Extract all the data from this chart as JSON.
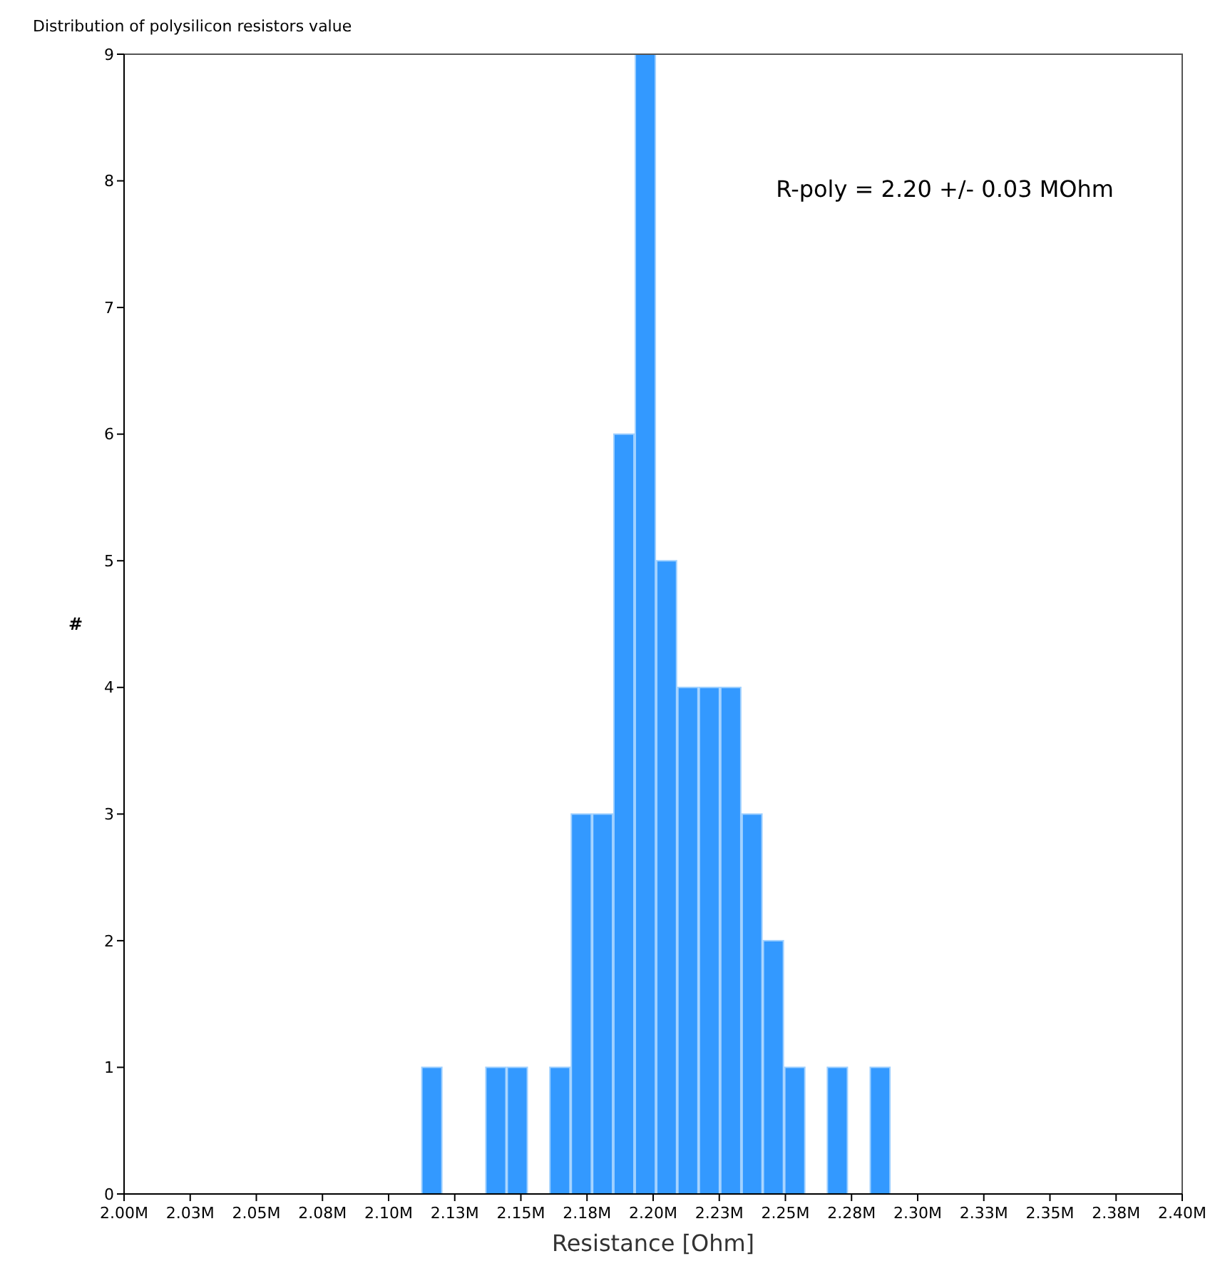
{
  "chart_data": {
    "type": "histogram",
    "title": "Distribution of polysilicon resistors value",
    "xlabel": "Resistance [Ohm]",
    "ylabel": "#",
    "annotations": [
      "R-poly = 2.20 +/- 0.03 MOhm"
    ],
    "bins": [
      2.1123,
      2.1204,
      2.1284,
      2.1365,
      2.1446,
      2.1527,
      2.1607,
      2.1688,
      2.1769,
      2.1849,
      2.193,
      2.2011,
      2.2091,
      2.2172,
      2.2253,
      2.2334,
      2.2414,
      2.2495,
      2.2576,
      2.2656,
      2.2737,
      2.2818,
      2.2898
    ],
    "values": [
      1,
      0,
      0,
      1,
      1,
      0,
      1,
      3,
      3,
      6,
      9,
      5,
      4,
      4,
      4,
      3,
      2,
      1,
      0,
      1,
      0,
      1
    ],
    "color": "#3399ff",
    "xlim": [
      2.0,
      2.4
    ],
    "xticks": [
      {
        "value": 2.0,
        "label": "2.00M"
      },
      {
        "value": 2.025,
        "label": "2.03M"
      },
      {
        "value": 2.05,
        "label": "2.05M"
      },
      {
        "value": 2.075,
        "label": "2.08M"
      },
      {
        "value": 2.1,
        "label": "2.10M"
      },
      {
        "value": 2.125,
        "label": "2.13M"
      },
      {
        "value": 2.15,
        "label": "2.15M"
      },
      {
        "value": 2.175,
        "label": "2.18M"
      },
      {
        "value": 2.2,
        "label": "2.20M"
      },
      {
        "value": 2.225,
        "label": "2.23M"
      },
      {
        "value": 2.25,
        "label": "2.25M"
      },
      {
        "value": 2.275,
        "label": "2.28M"
      },
      {
        "value": 2.3,
        "label": "2.30M"
      },
      {
        "value": 2.325,
        "label": "2.33M"
      },
      {
        "value": 2.35,
        "label": "2.35M"
      },
      {
        "value": 2.375,
        "label": "2.38M"
      },
      {
        "value": 2.4,
        "label": "2.40M"
      }
    ],
    "ylim": [
      0,
      9
    ],
    "yticks": [
      0,
      1,
      2,
      3,
      4,
      5,
      6,
      7,
      8,
      9
    ],
    "grid": false
  }
}
